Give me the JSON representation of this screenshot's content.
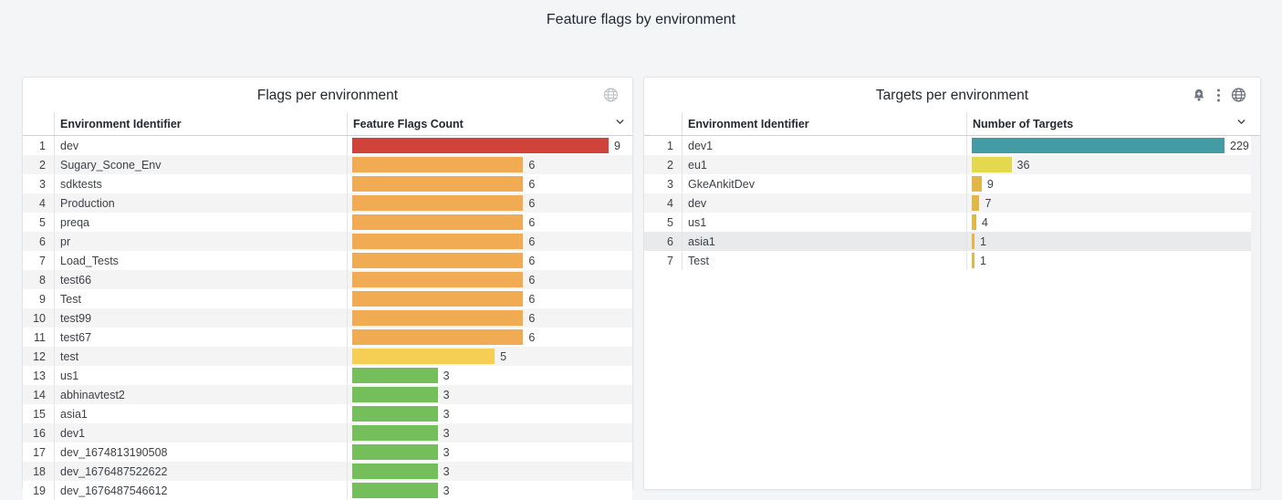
{
  "page": {
    "title": "Feature flags by environment",
    "background_color": "#f4f5f6"
  },
  "panels": [
    {
      "title": "Flags per environment",
      "icons": [
        "globe-icon"
      ],
      "columns": {
        "name": "Environment Identifier",
        "value": "Feature Flags Count"
      },
      "max": 9,
      "rows": [
        {
          "index": 1,
          "name": "dev",
          "value": 9,
          "color": "#d0433a"
        },
        {
          "index": 2,
          "name": "Sugary_Scone_Env",
          "value": 6,
          "color": "#f1ac53"
        },
        {
          "index": 3,
          "name": "sdktests",
          "value": 6,
          "color": "#f1ac53"
        },
        {
          "index": 4,
          "name": "Production",
          "value": 6,
          "color": "#f1ac53"
        },
        {
          "index": 5,
          "name": "preqa",
          "value": 6,
          "color": "#f1ac53"
        },
        {
          "index": 6,
          "name": "pr",
          "value": 6,
          "color": "#f1ac53"
        },
        {
          "index": 7,
          "name": "Load_Tests",
          "value": 6,
          "color": "#f1ac53"
        },
        {
          "index": 8,
          "name": "test66",
          "value": 6,
          "color": "#f1ac53"
        },
        {
          "index": 9,
          "name": "Test",
          "value": 6,
          "color": "#f1ac53"
        },
        {
          "index": 10,
          "name": "test99",
          "value": 6,
          "color": "#f1ac53"
        },
        {
          "index": 11,
          "name": "test67",
          "value": 6,
          "color": "#f1ac53"
        },
        {
          "index": 12,
          "name": "test",
          "value": 5,
          "color": "#f4cf54"
        },
        {
          "index": 13,
          "name": "us1",
          "value": 3,
          "color": "#74bf5b"
        },
        {
          "index": 14,
          "name": "abhinavtest2",
          "value": 3,
          "color": "#74bf5b"
        },
        {
          "index": 15,
          "name": "asia1",
          "value": 3,
          "color": "#74bf5b"
        },
        {
          "index": 16,
          "name": "dev1",
          "value": 3,
          "color": "#74bf5b"
        },
        {
          "index": 17,
          "name": "dev_1674813190508",
          "value": 3,
          "color": "#74bf5b"
        },
        {
          "index": 18,
          "name": "dev_1676487522622",
          "value": 3,
          "color": "#74bf5b"
        },
        {
          "index": 19,
          "name": "dev_1676487546612",
          "value": 3,
          "color": "#74bf5b"
        }
      ]
    },
    {
      "title": "Targets per environment",
      "icons": [
        "bell-plus-icon",
        "kebab-menu-icon",
        "globe-icon"
      ],
      "columns": {
        "name": "Environment Identifier",
        "value": "Number of Targets"
      },
      "max": 229,
      "rows": [
        {
          "index": 1,
          "name": "dev1",
          "value": 229,
          "color": "#439ca3"
        },
        {
          "index": 2,
          "name": "eu1",
          "value": 36,
          "color": "#e4d94e"
        },
        {
          "index": 3,
          "name": "GkeAnkitDev",
          "value": 9,
          "color": "#e2b748"
        },
        {
          "index": 4,
          "name": "dev",
          "value": 7,
          "color": "#e2b748"
        },
        {
          "index": 5,
          "name": "us1",
          "value": 4,
          "color": "#e2b748"
        },
        {
          "index": 6,
          "name": "asia1",
          "value": 1,
          "color": "#e2b748",
          "highlighted": true
        },
        {
          "index": 7,
          "name": "Test",
          "value": 1,
          "color": "#e2b748"
        }
      ]
    }
  ],
  "chart_data": [
    {
      "type": "bar",
      "orientation": "horizontal",
      "title": "Flags per environment",
      "categories": [
        "dev",
        "Sugary_Scone_Env",
        "sdktests",
        "Production",
        "preqa",
        "pr",
        "Load_Tests",
        "test66",
        "Test",
        "test99",
        "test67",
        "test",
        "us1",
        "abhinavtest2",
        "asia1",
        "dev1",
        "dev_1674813190508",
        "dev_1676487522622",
        "dev_1676487546612"
      ],
      "values": [
        9,
        6,
        6,
        6,
        6,
        6,
        6,
        6,
        6,
        6,
        6,
        5,
        3,
        3,
        3,
        3,
        3,
        3,
        3
      ],
      "xlabel": "Feature Flags Count",
      "ylabel": "Environment Identifier",
      "xlim": [
        0,
        9
      ],
      "grid": false,
      "legend": false
    },
    {
      "type": "bar",
      "orientation": "horizontal",
      "title": "Targets per environment",
      "categories": [
        "dev1",
        "eu1",
        "GkeAnkitDev",
        "dev",
        "us1",
        "asia1",
        "Test"
      ],
      "values": [
        229,
        36,
        9,
        7,
        4,
        1,
        1
      ],
      "xlabel": "Number of Targets",
      "ylabel": "Environment Identifier",
      "xlim": [
        0,
        229
      ],
      "grid": false,
      "legend": false
    }
  ]
}
